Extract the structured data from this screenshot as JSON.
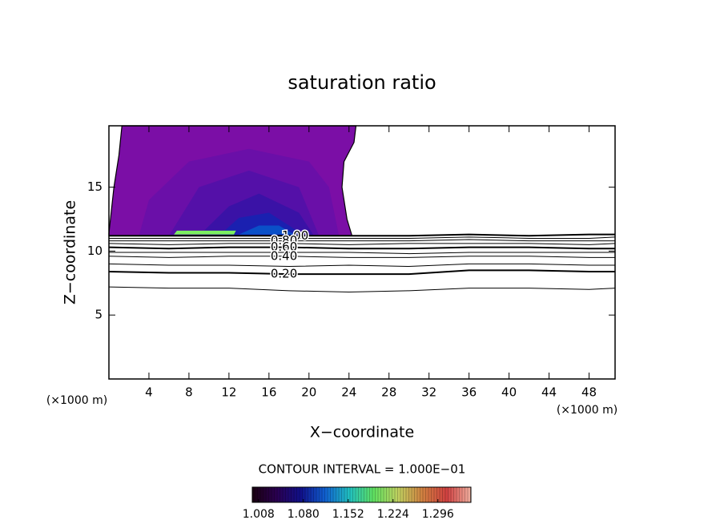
{
  "chart_data": {
    "type": "contour",
    "title": "saturation ratio",
    "xlabel": "X−coordinate",
    "ylabel": "Z−coordinate",
    "x_unit": "(×1000 m)",
    "xlim": [
      0,
      50.6
    ],
    "ylim": [
      0,
      19.8
    ],
    "xticks": [
      4,
      8,
      12,
      16,
      20,
      24,
      28,
      32,
      36,
      40,
      44,
      48
    ],
    "yticks": [
      5,
      10,
      15
    ],
    "fills": [
      {
        "level": 1.0,
        "color": "#7b0ea6",
        "x": [
          0,
          0.5,
          1,
          1.3,
          24.7,
          24.5,
          23.5,
          23.3,
          23.8,
          24.3,
          0
        ],
        "z": [
          11.4,
          15,
          17.5,
          19.8,
          19.8,
          18.5,
          17,
          15,
          12.5,
          11.2,
          11.2
        ]
      },
      {
        "level": 1.02,
        "color": "#6a0fa8",
        "x": [
          3,
          4,
          8,
          14,
          20,
          22,
          23
        ],
        "z": [
          11.2,
          14,
          17,
          18,
          17,
          15,
          11.2
        ]
      },
      {
        "level": 1.04,
        "color": "#5410a8",
        "x": [
          6,
          9,
          14,
          19,
          21
        ],
        "z": [
          11.2,
          15,
          16.3,
          15,
          11.2
        ]
      },
      {
        "level": 1.06,
        "color": "#3a12a6",
        "x": [
          9,
          12,
          15,
          19,
          20.5
        ],
        "z": [
          11.2,
          13.5,
          14.5,
          13,
          11.2
        ]
      },
      {
        "level": 1.08,
        "color": "#1a20b0",
        "x": [
          11,
          13,
          16,
          18,
          19.5
        ],
        "z": [
          11.2,
          12.6,
          13,
          12,
          11.2
        ]
      },
      {
        "level": 1.1,
        "color": "#0a50c8",
        "x": [
          13,
          15,
          17,
          18.5
        ],
        "z": [
          11.3,
          12,
          12,
          11.3
        ]
      },
      {
        "level": 1.16,
        "color": "#7cf060",
        "x": [
          6.5,
          6.8,
          12.7,
          12.5
        ],
        "z": [
          11.3,
          11.6,
          11.6,
          11.3
        ]
      }
    ],
    "contour_x": [
      0,
      6,
      12,
      18,
      24,
      30,
      36,
      42,
      48,
      50.6
    ],
    "contours": [
      {
        "level": 0.1,
        "z": [
          7.2,
          7.1,
          7.1,
          6.9,
          6.8,
          6.9,
          7.1,
          7.1,
          7.0,
          7.1
        ]
      },
      {
        "level": 0.2,
        "z": [
          8.4,
          8.3,
          8.3,
          8.2,
          8.2,
          8.2,
          8.5,
          8.5,
          8.4,
          8.4
        ]
      },
      {
        "level": 0.3,
        "z": [
          9.0,
          8.9,
          8.9,
          8.8,
          8.9,
          8.8,
          9.0,
          9.0,
          8.9,
          8.9
        ]
      },
      {
        "level": 0.4,
        "z": [
          9.6,
          9.5,
          9.6,
          9.6,
          9.5,
          9.5,
          9.6,
          9.6,
          9.5,
          9.5
        ]
      },
      {
        "level": 0.5,
        "z": [
          9.9,
          9.9,
          9.9,
          9.9,
          9.9,
          9.8,
          9.9,
          9.9,
          9.9,
          9.9
        ]
      },
      {
        "level": 0.6,
        "z": [
          10.3,
          10.2,
          10.3,
          10.3,
          10.2,
          10.2,
          10.3,
          10.3,
          10.2,
          10.2
        ]
      },
      {
        "level": 0.7,
        "z": [
          10.6,
          10.5,
          10.6,
          10.6,
          10.5,
          10.6,
          10.6,
          10.6,
          10.5,
          10.6
        ]
      },
      {
        "level": 0.8,
        "z": [
          10.8,
          10.8,
          10.8,
          10.8,
          10.8,
          10.8,
          10.9,
          10.8,
          10.8,
          10.8
        ]
      },
      {
        "level": 0.9,
        "z": [
          11.0,
          11.0,
          11.0,
          11.0,
          11.0,
          11.0,
          11.1,
          11.0,
          11.0,
          11.1
        ]
      },
      {
        "level": 1.0,
        "z": [
          11.2,
          11.2,
          11.2,
          11.2,
          11.2,
          11.2,
          11.3,
          11.2,
          11.3,
          11.3
        ]
      }
    ],
    "contour_labels": [
      {
        "value": 1.0,
        "label": "1.00"
      },
      {
        "value": 0.8,
        "label": "0.80"
      },
      {
        "value": 0.6,
        "label": "0.60"
      },
      {
        "value": 0.4,
        "label": "0.40"
      },
      {
        "value": 0.2,
        "label": "0.20"
      }
    ],
    "contour_interval": "CONTOUR INTERVAL = 1.000E−01",
    "clim": [
      0.998,
      1.349
    ],
    "colormap": [
      "#1a0010",
      "#2a0050",
      "#10108a",
      "#1060d0",
      "#20c0c0",
      "#60e060",
      "#c0d060",
      "#d08040",
      "#d04040",
      "#f0b0a0"
    ],
    "cticks": [
      {
        "value": 1.008,
        "label": "1.008"
      },
      {
        "value": 1.08,
        "label": "1.080"
      },
      {
        "value": 1.152,
        "label": "1.152"
      },
      {
        "value": 1.224,
        "label": "1.224"
      },
      {
        "value": 1.296,
        "label": "1.296"
      }
    ]
  }
}
